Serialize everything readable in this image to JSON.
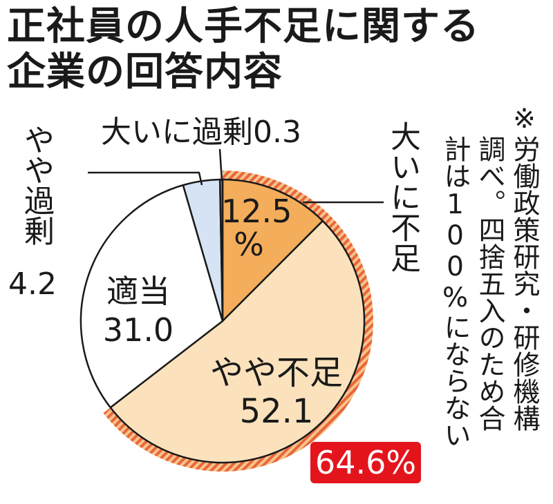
{
  "title": {
    "line1": "正社員の人手不足に関する",
    "line2": "企業の回答内容"
  },
  "note": {
    "col1": "※",
    "col2": "労働政策研究・研修機構",
    "col3": "調べ。四捨五入のため合",
    "col4": "計は100%にならない"
  },
  "highlight": {
    "total": "64.6%"
  },
  "chart_data": {
    "type": "pie",
    "unit": "%",
    "slices": [
      {
        "name": "大いに不足",
        "value": 12.5,
        "value_label": "12.5",
        "unit_label": "%",
        "color": "#f4ad5b"
      },
      {
        "name": "やや不足",
        "value": 52.1,
        "value_label": "52.1",
        "color": "#fbe2bc"
      },
      {
        "name": "適当",
        "value": 31.0,
        "value_label": "31.0",
        "color": "#ffffff"
      },
      {
        "name": "やや過剰",
        "value": 4.2,
        "value_label": "4.2",
        "color": "#d6e3f5"
      },
      {
        "name": "大いに過剰",
        "value": 0.3,
        "value_label": "0.3",
        "color": "#8a8a8a"
      }
    ],
    "highlight_group": [
      "大いに不足",
      "やや不足"
    ],
    "highlight_color": "#e8663a",
    "start": "12 o'clock, clockwise"
  }
}
